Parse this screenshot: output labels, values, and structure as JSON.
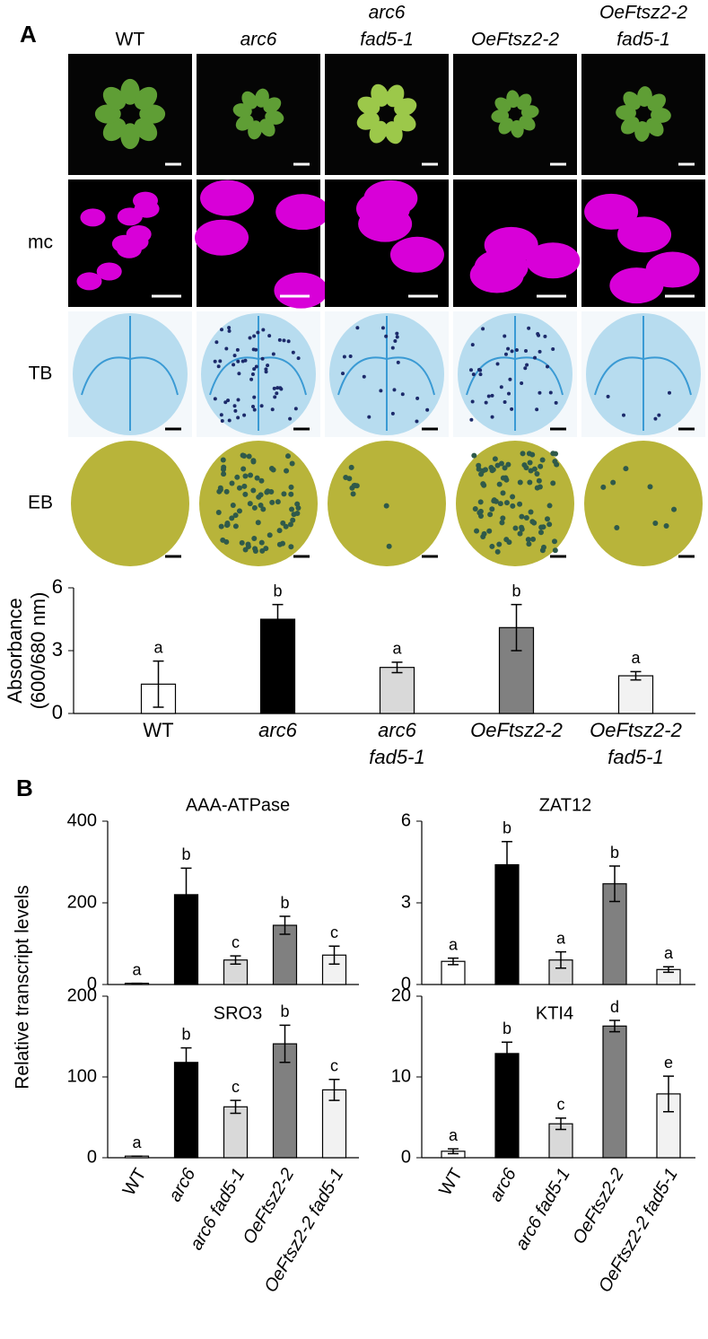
{
  "panel_a": {
    "label": "A",
    "columns": [
      [
        "WT"
      ],
      [
        "arc6"
      ],
      [
        "arc6",
        "fad5-1"
      ],
      [
        "OeFtsz2-2"
      ],
      [
        "OeFtsz2-2",
        "fad5-1"
      ]
    ],
    "rows": [
      "mc",
      "TB",
      "EB"
    ]
  },
  "panel_b": {
    "label": "B",
    "ylabel": "Relative transcript levels"
  },
  "chart_data": [
    {
      "type": "bar",
      "ylabel": [
        "Absorbance",
        "(600/680 nm)"
      ],
      "categories": [
        [
          "WT"
        ],
        [
          "arc6"
        ],
        [
          "arc6",
          "fad5-1"
        ],
        [
          "OeFtsz2-2"
        ],
        [
          "OeFtsz2-2",
          "fad5-1"
        ]
      ],
      "values": [
        1.4,
        4.5,
        2.2,
        4.1,
        1.8
      ],
      "errors": [
        1.1,
        0.7,
        0.25,
        1.1,
        0.2
      ],
      "letters": [
        "a",
        "b",
        "a",
        "b",
        "a"
      ],
      "colors": [
        "#ffffff",
        "#000000",
        "#d9d9d9",
        "#808080",
        "#f2f2f2"
      ],
      "ylim": [
        0,
        6
      ],
      "yticks": [
        0,
        3,
        6
      ]
    },
    {
      "type": "bar",
      "title": "AAA-ATPase",
      "categories": [
        null,
        null,
        null,
        null,
        null
      ],
      "values": [
        3,
        220,
        60,
        145,
        72
      ],
      "errors": [
        0,
        65,
        10,
        22,
        22
      ],
      "letters": [
        "a",
        "b",
        "c",
        "b",
        "c"
      ],
      "colors": [
        "#ffffff",
        "#000000",
        "#d9d9d9",
        "#808080",
        "#f2f2f2"
      ],
      "ylim": [
        0,
        400
      ],
      "yticks": [
        0,
        200,
        400
      ]
    },
    {
      "type": "bar",
      "title": "ZAT12",
      "categories": [
        null,
        null,
        null,
        null,
        null
      ],
      "values": [
        0.85,
        4.4,
        0.9,
        3.7,
        0.55
      ],
      "errors": [
        0.12,
        0.85,
        0.3,
        0.65,
        0.1
      ],
      "letters": [
        "a",
        "b",
        "a",
        "b",
        "a"
      ],
      "colors": [
        "#ffffff",
        "#000000",
        "#d9d9d9",
        "#808080",
        "#f2f2f2"
      ],
      "ylim": [
        0,
        6
      ],
      "yticks": [
        0,
        3,
        6
      ]
    },
    {
      "type": "bar",
      "title": "SRO3",
      "categories": [
        "WT",
        "arc6",
        "arc6 fad5-1",
        "OeFtsz2-2",
        "OeFtsz2-2 fad5-1"
      ],
      "values": [
        2,
        118,
        63,
        141,
        84
      ],
      "errors": [
        0,
        18,
        8,
        23,
        13
      ],
      "letters": [
        "a",
        "b",
        "c",
        "b",
        "c"
      ],
      "colors": [
        "#ffffff",
        "#000000",
        "#d9d9d9",
        "#808080",
        "#f2f2f2"
      ],
      "ylim": [
        0,
        200
      ],
      "yticks": [
        0,
        100,
        200
      ]
    },
    {
      "type": "bar",
      "title": "KTI4",
      "categories": [
        "WT",
        "arc6",
        "arc6 fad5-1",
        "OeFtsz2-2",
        "OeFtsz2-2 fad5-1"
      ],
      "values": [
        0.8,
        12.9,
        4.2,
        16.3,
        7.9
      ],
      "errors": [
        0.3,
        1.4,
        0.7,
        0.7,
        2.2
      ],
      "letters": [
        "a",
        "b",
        "c",
        "d",
        "e"
      ],
      "colors": [
        "#ffffff",
        "#000000",
        "#d9d9d9",
        "#808080",
        "#f2f2f2"
      ],
      "ylim": [
        0,
        20
      ],
      "yticks": [
        0,
        10,
        20
      ]
    }
  ]
}
